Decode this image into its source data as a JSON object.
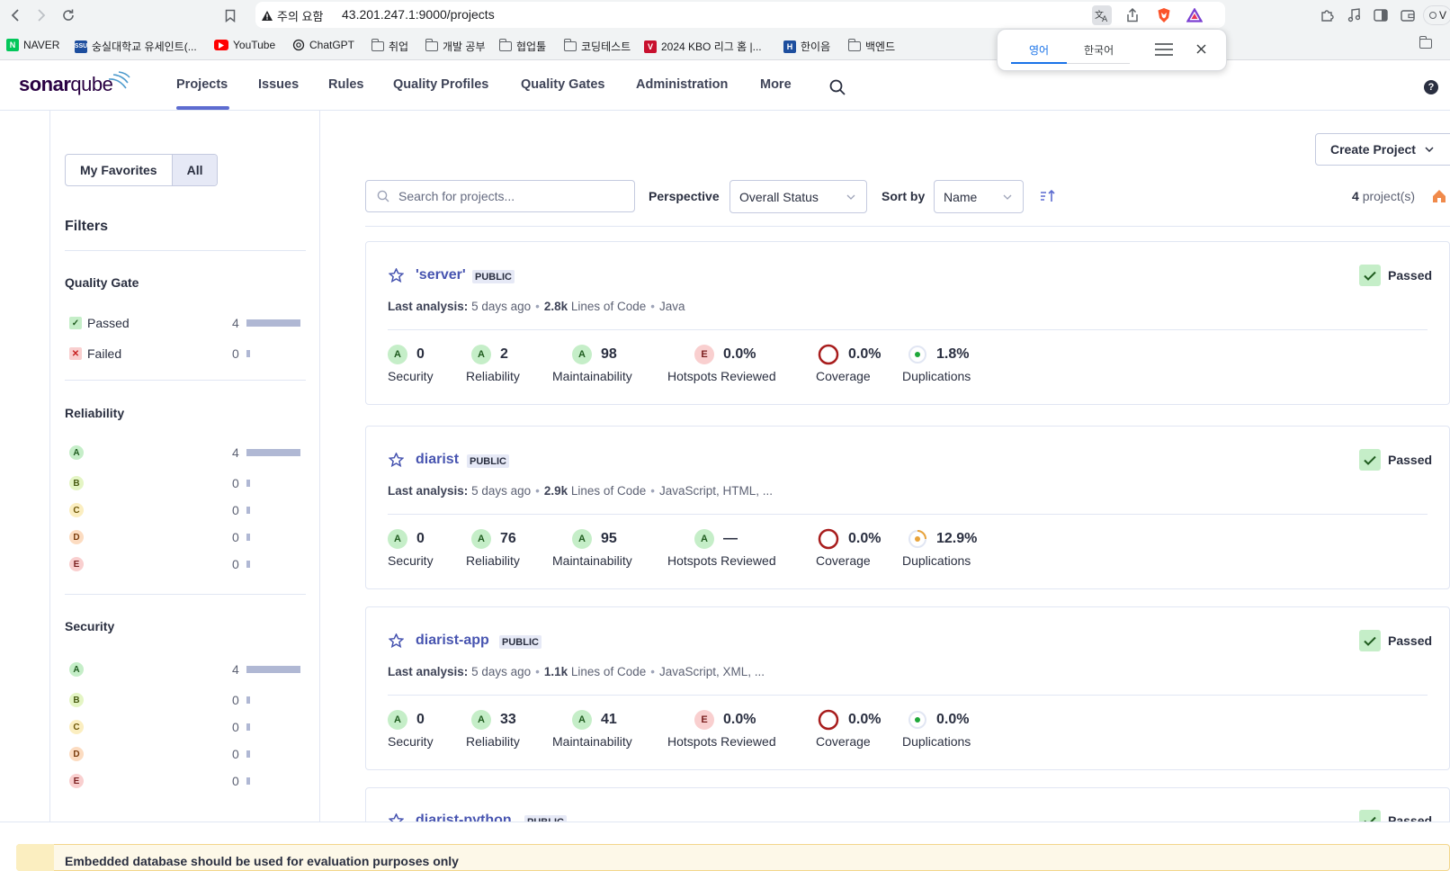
{
  "browser": {
    "security_warning": "주의 요함",
    "url": "43.201.247.1:9000/projects",
    "profile_label": "V",
    "bookmarks": [
      {
        "label": "NAVER",
        "icon": "naver-icon",
        "color": "#03c75a"
      },
      {
        "label": "숭실대학교 유세인트(...",
        "icon": "ssu-icon",
        "color": "#1d4e9e"
      },
      {
        "label": "YouTube",
        "icon": "youtube-icon",
        "color": "#ff0000"
      },
      {
        "label": "ChatGPT",
        "icon": "chatgpt-icon",
        "color": "#202124"
      },
      {
        "label": "취업",
        "icon": "folder-icon"
      },
      {
        "label": "개발 공부",
        "icon": "folder-icon"
      },
      {
        "label": "협업툴",
        "icon": "folder-icon"
      },
      {
        "label": "코딩테스트",
        "icon": "folder-icon"
      },
      {
        "label": "2024 KBO 리그 홈 |...",
        "icon": "kbo-icon",
        "color": "#c8102e"
      },
      {
        "label": "한이음",
        "icon": "hanieum-icon",
        "color": "#1d4e9e"
      },
      {
        "label": "백엔드",
        "icon": "folder-icon"
      }
    ]
  },
  "translate_popup": {
    "tab_source": "영어",
    "tab_target": "한국어"
  },
  "header": {
    "logo": {
      "part1": "sonar",
      "part2": "qube"
    },
    "nav": [
      {
        "label": "Projects",
        "active": true
      },
      {
        "label": "Issues"
      },
      {
        "label": "Rules"
      },
      {
        "label": "Quality Profiles"
      },
      {
        "label": "Quality Gates"
      },
      {
        "label": "Administration"
      },
      {
        "label": "More"
      }
    ]
  },
  "sidebar": {
    "toggle": {
      "favorites": "My Favorites",
      "all": "All"
    },
    "filters_title": "Filters",
    "quality_gate": {
      "title": "Quality Gate",
      "items": [
        {
          "label": "Passed",
          "count": "4",
          "fraction": 1.0,
          "icon": "check-icon"
        },
        {
          "label": "Failed",
          "count": "0",
          "fraction": 0.0,
          "icon": "x-icon"
        }
      ]
    },
    "reliability": {
      "title": "Reliability",
      "items": [
        {
          "label": "A",
          "count": "4",
          "fraction": 1.0
        },
        {
          "label": "B",
          "count": "0",
          "fraction": 0.0
        },
        {
          "label": "C",
          "count": "0",
          "fraction": 0.0
        },
        {
          "label": "D",
          "count": "0",
          "fraction": 0.0
        },
        {
          "label": "E",
          "count": "0",
          "fraction": 0.0
        }
      ]
    },
    "security": {
      "title": "Security",
      "items": [
        {
          "label": "A",
          "count": "4",
          "fraction": 1.0
        },
        {
          "label": "B",
          "count": "0",
          "fraction": 0.0
        },
        {
          "label": "C",
          "count": "0",
          "fraction": 0.0
        },
        {
          "label": "D",
          "count": "0",
          "fraction": 0.0
        },
        {
          "label": "E",
          "count": "0",
          "fraction": 0.0
        }
      ]
    }
  },
  "toolbar": {
    "create_project": "Create Project",
    "search_placeholder": "Search for projects...",
    "perspective_label": "Perspective",
    "perspective_value": "Overall Status",
    "sort_label": "Sort by",
    "sort_value": "Name",
    "count_number": "4",
    "count_suffix": "project(s)"
  },
  "metric_labels": {
    "security": "Security",
    "reliability": "Reliability",
    "maintainability": "Maintainability",
    "hotspots": "Hotspots Reviewed",
    "coverage": "Coverage",
    "duplications": "Duplications"
  },
  "projects": [
    {
      "name": "'server'",
      "visibility": "PUBLIC",
      "status": "Passed",
      "last_analysis_label": "Last analysis:",
      "last_analysis": "5 days ago",
      "loc": "2.8k",
      "loc_label": "Lines of Code",
      "languages": "Java",
      "security": {
        "rating": "A",
        "value": "0"
      },
      "reliability": {
        "rating": "A",
        "value": "2"
      },
      "maintainability": {
        "rating": "A",
        "value": "98"
      },
      "hotspots": {
        "rating": "E",
        "value": "0.0%"
      },
      "coverage": {
        "value": "0.0%"
      },
      "duplications": {
        "value": "1.8%"
      }
    },
    {
      "name": "diarist",
      "visibility": "PUBLIC",
      "status": "Passed",
      "last_analysis_label": "Last analysis:",
      "last_analysis": "5 days ago",
      "loc": "2.9k",
      "loc_label": "Lines of Code",
      "languages": "JavaScript, HTML, ...",
      "security": {
        "rating": "A",
        "value": "0"
      },
      "reliability": {
        "rating": "A",
        "value": "76"
      },
      "maintainability": {
        "rating": "A",
        "value": "95"
      },
      "hotspots": {
        "rating": "A",
        "value": "—"
      },
      "coverage": {
        "value": "0.0%"
      },
      "duplications": {
        "value": "12.9%"
      }
    },
    {
      "name": "diarist-app",
      "visibility": "PUBLIC",
      "status": "Passed",
      "last_analysis_label": "Last analysis:",
      "last_analysis": "5 days ago",
      "loc": "1.1k",
      "loc_label": "Lines of Code",
      "languages": "JavaScript, XML, ...",
      "security": {
        "rating": "A",
        "value": "0"
      },
      "reliability": {
        "rating": "A",
        "value": "33"
      },
      "maintainability": {
        "rating": "A",
        "value": "41"
      },
      "hotspots": {
        "rating": "E",
        "value": "0.0%"
      },
      "coverage": {
        "value": "0.0%"
      },
      "duplications": {
        "value": "0.0%"
      }
    },
    {
      "name": "diarist-python",
      "visibility": "PUBLIC",
      "status": "Passed"
    }
  ],
  "warning": "Embedded database should be used for evaluation purposes only"
}
